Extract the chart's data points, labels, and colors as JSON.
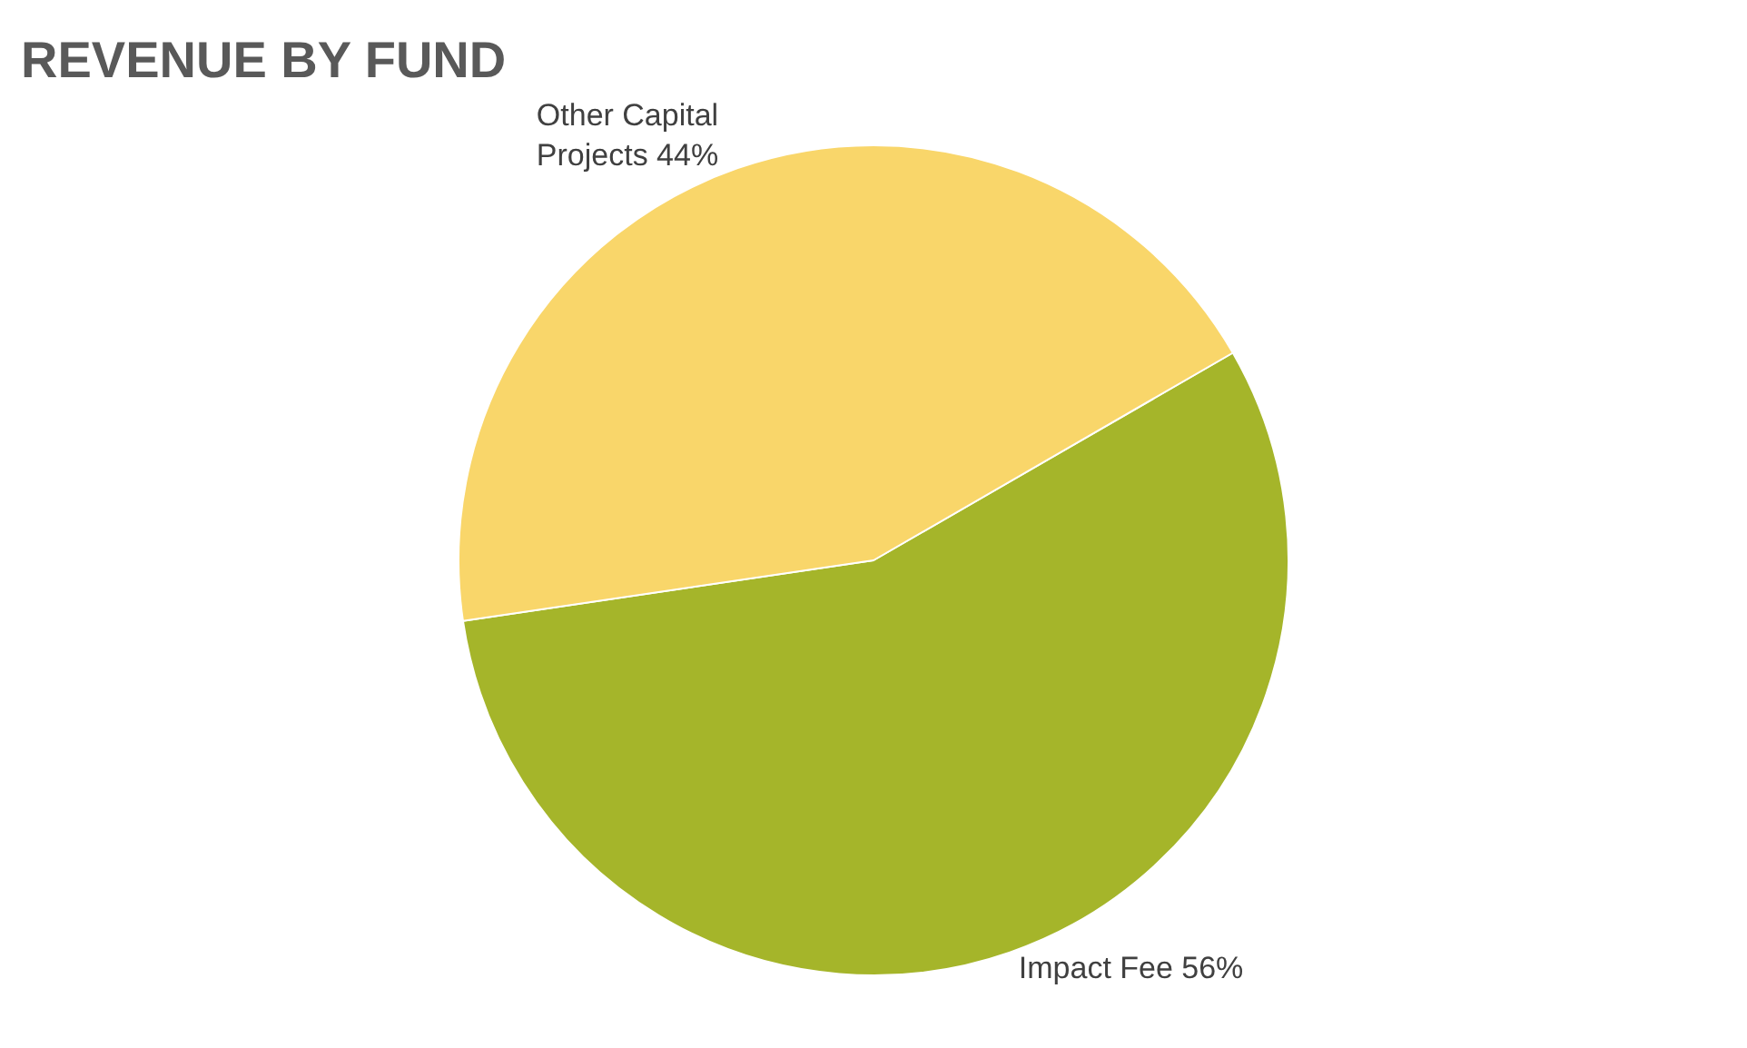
{
  "chart_data": {
    "type": "pie",
    "title": "REVENUE BY FUND",
    "categories": [
      "Impact Fee",
      "Other Capital Projects"
    ],
    "values": [
      56,
      44
    ],
    "colors": [
      "#a5b52a",
      "#f9d66a"
    ],
    "value_labels": [
      "56%",
      "44%"
    ],
    "legend": false
  }
}
